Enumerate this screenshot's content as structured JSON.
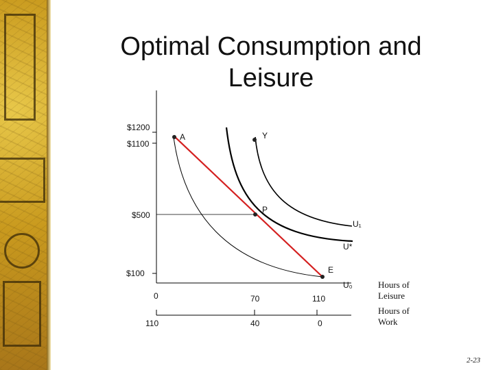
{
  "slide": {
    "title_line1": "Optimal Consumption and",
    "title_line2": "Leisure",
    "page_number": "2-23"
  },
  "diagram": {
    "y_tick_labels": [
      "$1200",
      "$1100",
      "$500",
      "$100"
    ],
    "points": [
      "A",
      "Y",
      "P",
      "E"
    ],
    "curve_labels": [
      "U₁",
      "U*",
      "U₀"
    ],
    "leisure_axis": {
      "ticks": [
        "0",
        "70",
        "110"
      ],
      "label_line1": "Hours of",
      "label_line2": "Leisure"
    },
    "work_axis": {
      "ticks": [
        "110",
        "40",
        "0"
      ],
      "label_line1": "Hours of",
      "label_line2": "Work"
    }
  },
  "colors": {
    "budget_line": "#d42020",
    "curves": "#000000",
    "background_band": "#c99a1e"
  }
}
